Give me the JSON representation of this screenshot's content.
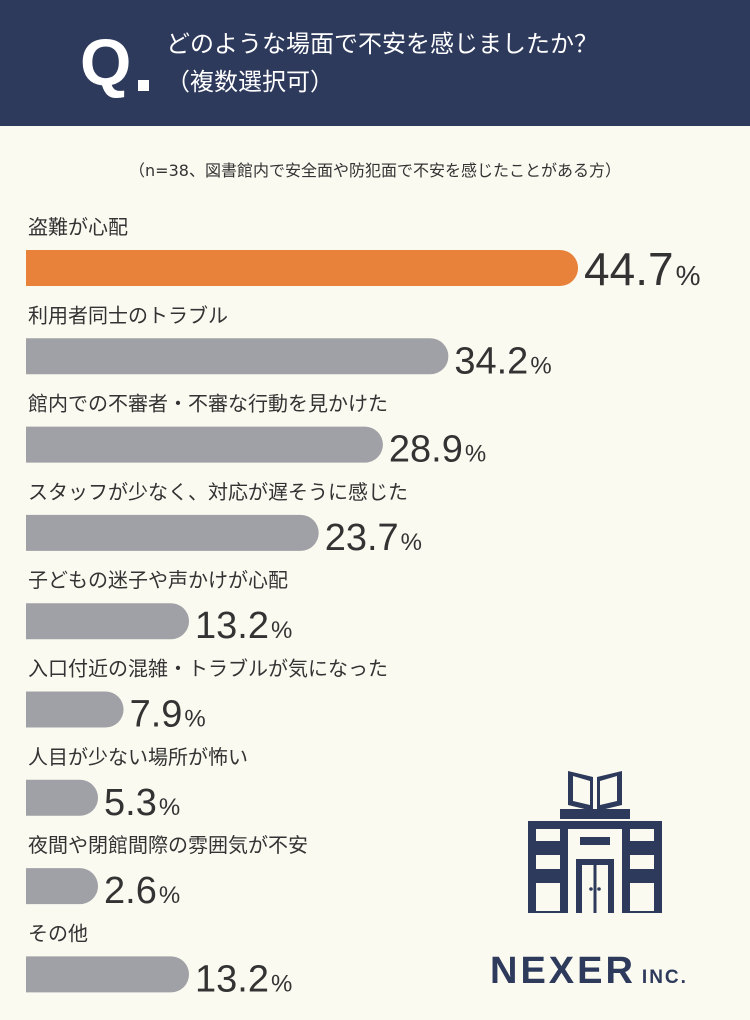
{
  "header": {
    "q_mark": "Q",
    "question_line1": "どのような場面で不安を感じましたか？",
    "question_line2": "（複数選択可）"
  },
  "note": "（n=38、図書館内で安全面や防犯面で不安を感じたことがある方）",
  "chart_data": {
    "type": "bar",
    "orientation": "horizontal",
    "categories": [
      "盗難が心配",
      "利用者同士のトラブル",
      "館内での不審者・不審な行動を見かけた",
      "スタッフが少なく、対応が遅そうに感じた",
      "子どもの迷子や声かけが心配",
      "入口付近の混雑・トラブルが気になった",
      "人目が少ない場所が怖い",
      "夜間や閉館間際の雰囲気が不安",
      "その他"
    ],
    "values": [
      44.7,
      34.2,
      28.9,
      23.7,
      13.2,
      7.9,
      5.3,
      2.6,
      13.2
    ],
    "value_labels": [
      "44.7",
      "34.2",
      "28.9",
      "23.7",
      "13.2",
      "7.9",
      "5.3",
      "2.6",
      "13.2"
    ],
    "unit": "%",
    "highlight_index": 0,
    "colors": {
      "highlight": "#e8823b",
      "default": "#a0a1a6"
    }
  },
  "brand": {
    "name": "NEXER",
    "suffix": "INC.",
    "color": "#2e3a5c"
  }
}
